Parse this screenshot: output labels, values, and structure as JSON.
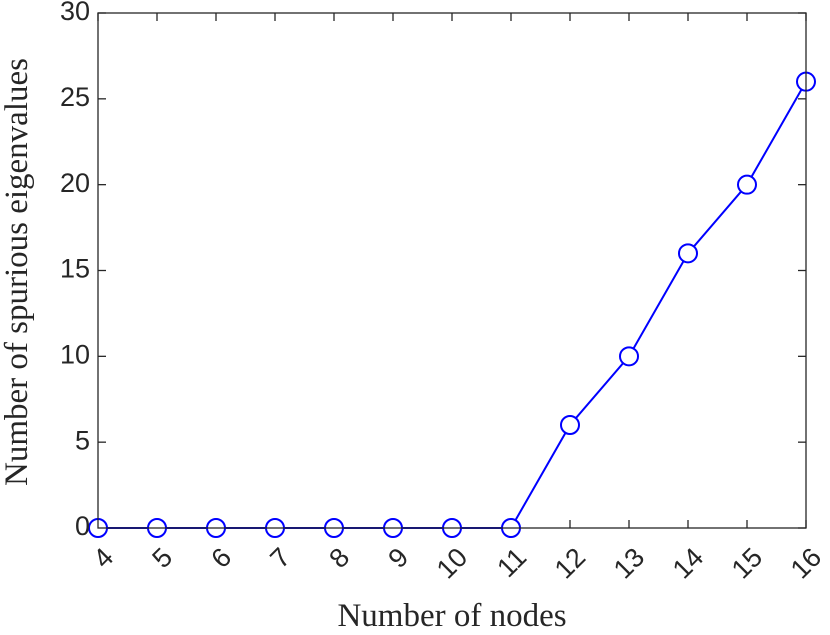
{
  "chart_data": {
    "type": "line",
    "xlabel": "Number of nodes",
    "ylabel": "Number of spurious eigenvalues",
    "x": [
      4,
      5,
      6,
      7,
      8,
      9,
      10,
      11,
      12,
      13,
      14,
      15,
      16
    ],
    "xlim": [
      4,
      16
    ],
    "ylim": [
      0,
      30
    ],
    "xticks": [
      "4",
      "5",
      "6",
      "7",
      "8",
      "9",
      "10",
      "11",
      "12",
      "13",
      "14",
      "15",
      "16"
    ],
    "yticks": [
      "0",
      "5",
      "10",
      "15",
      "20",
      "25",
      "30"
    ],
    "series": [
      {
        "values": [
          0,
          0,
          0,
          0,
          0,
          0,
          0,
          0,
          6,
          10,
          16,
          20,
          26
        ],
        "color": "#0000ff",
        "marker": "open-circle"
      }
    ],
    "grid": false,
    "box": true
  }
}
